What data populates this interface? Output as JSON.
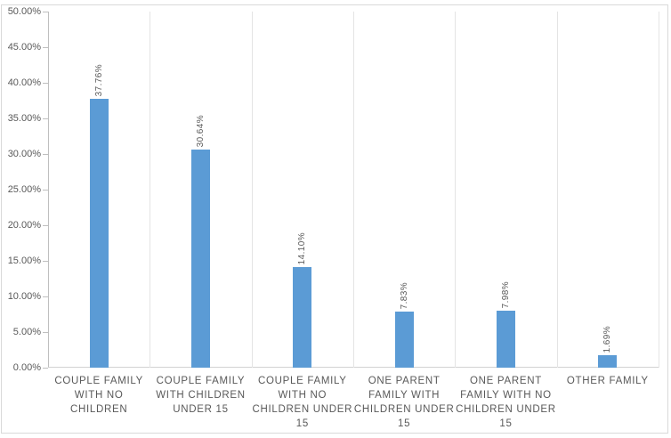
{
  "chart_data": {
    "type": "bar",
    "title": "",
    "xlabel": "",
    "ylabel": "",
    "legend": "none",
    "grid": "vertical category separators only, no horizontal gridlines",
    "ylim": [
      0,
      50
    ],
    "y_tick_step": 5,
    "y_ticks": [
      "0.00%",
      "5.00%",
      "10.00%",
      "15.00%",
      "20.00%",
      "25.00%",
      "30.00%",
      "35.00%",
      "40.00%",
      "45.00%",
      "50.00%"
    ],
    "categories": [
      "COUPLE FAMILY\nWITH NO\nCHILDREN",
      "COUPLE FAMILY\nWITH CHILDREN\nUNDER 15",
      "COUPLE FAMILY\nWITH NO\nCHILDREN UNDER\n15",
      "ONE PARENT\nFAMILY WITH\nCHILDREN UNDER\n15",
      "ONE PARENT\nFAMILY WITH NO\nCHILDREN UNDER\n15",
      "OTHER FAMILY"
    ],
    "values": [
      37.76,
      30.64,
      14.1,
      7.83,
      7.98,
      1.69
    ],
    "data_labels": [
      "37.76%",
      "30.64%",
      "14.10%",
      "7.83%",
      "7.98%",
      "1.69%"
    ],
    "data_label_orientation": "rotated-90-bottom-to-top",
    "colors": {
      "bar": "#5b9bd5",
      "text": "#595959",
      "value_axis_line": "#bfbfbf",
      "category_baseline": "#d2d2d2",
      "separator_line": "#e4e4e4",
      "chart_border": "#d9d9d9",
      "background": "#ffffff"
    }
  }
}
